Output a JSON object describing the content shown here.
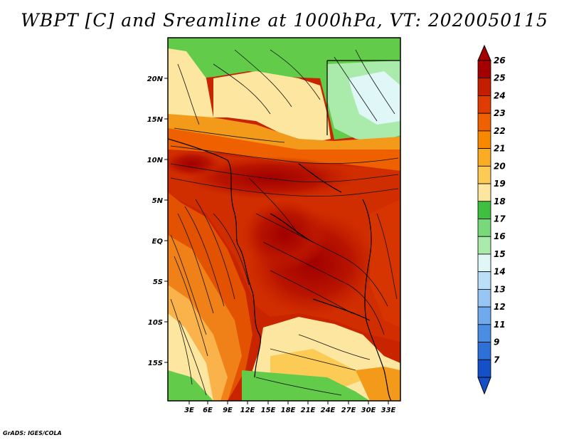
{
  "title": "WBPT [C] and Sreamline at 1000hPa, VT: 2020050115",
  "footer": "GrADS: IGES/COLA",
  "lat_labels": [
    "20N",
    "15N",
    "10N",
    "5N",
    "EQ",
    "5S",
    "10S",
    "15S"
  ],
  "lon_labels": [
    "3E",
    "6E",
    "9E",
    "12E",
    "15E",
    "18E",
    "21E",
    "24E",
    "27E",
    "30E",
    "33E"
  ],
  "colorbar": {
    "labels": [
      "26",
      "25",
      "24",
      "23",
      "22",
      "21",
      "20",
      "19",
      "18",
      "17",
      "16",
      "15",
      "14",
      "13",
      "12",
      "11",
      "9",
      "7"
    ],
    "colors": [
      "#a50000",
      "#c41e00",
      "#e03b00",
      "#ee6000",
      "#f88800",
      "#faac22",
      "#fbcb55",
      "#fce6a0",
      "#3fbf3f",
      "#79d879",
      "#aaeaaa",
      "#dff7f7",
      "#bcdff9",
      "#97c6f4",
      "#70aaed",
      "#4b8de3",
      "#2c70d8",
      "#1550c8"
    ]
  }
}
